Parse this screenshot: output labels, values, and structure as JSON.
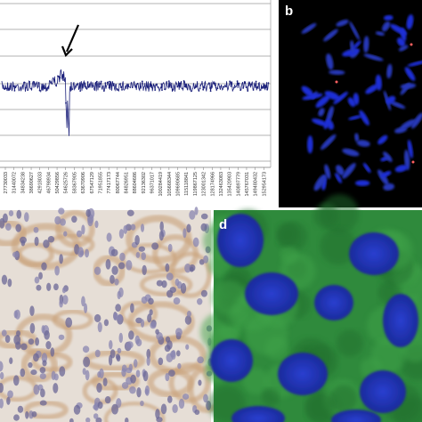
{
  "panel_a": {
    "x_labels": [
      "27730033",
      "31440072",
      "34834238",
      "38690627",
      "42918033",
      "46798934",
      "50429856",
      "54625726",
      "58367905",
      "63670906",
      "67547129",
      "71951855",
      "77417173",
      "80067744",
      "84826951",
      "88604686",
      "92136302",
      "96371017",
      "100284419",
      "105668344",
      "109690685",
      "115118841",
      "119867125",
      "123001342",
      "128174966",
      "132463083",
      "135420903",
      "140897779",
      "145767031",
      "149480432",
      "152954173"
    ]
  },
  "panel_b": {
    "label": "b"
  },
  "panel_d": {
    "label": "d"
  }
}
